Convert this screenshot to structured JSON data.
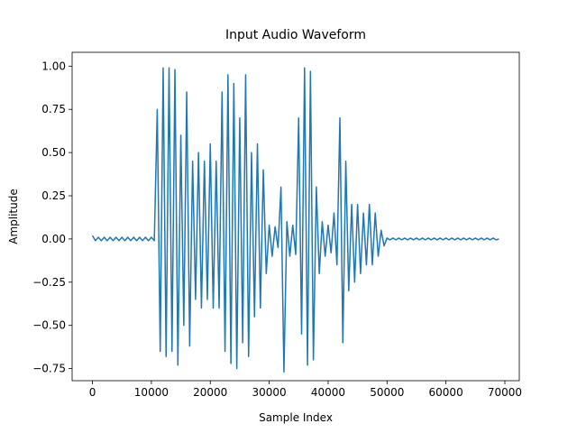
{
  "chart_data": {
    "type": "line",
    "title": "Input Audio Waveform",
    "x_label": "Sample Index",
    "y_label": "Amplitude",
    "color": "#1f77b4",
    "grid": false,
    "xlim": [
      -3450,
      72450
    ],
    "ylim": [
      -0.82,
      1.08
    ],
    "xticks": [
      0,
      10000,
      20000,
      30000,
      40000,
      50000,
      60000,
      70000
    ],
    "yticks": [
      {
        "value": -0.75,
        "label": "−0.75"
      },
      {
        "value": -0.5,
        "label": "−0.50"
      },
      {
        "value": -0.25,
        "label": "−0.25"
      },
      {
        "value": 0,
        "label": "0.00"
      },
      {
        "value": 0.25,
        "label": "0.25"
      },
      {
        "value": 0.5,
        "label": "0.50"
      },
      {
        "value": 0.75,
        "label": "0.75"
      },
      {
        "value": 1,
        "label": "1.00"
      }
    ],
    "x": [
      0,
      500,
      1000,
      1500,
      2000,
      2500,
      3000,
      3500,
      4000,
      4500,
      5000,
      5500,
      6000,
      6500,
      7000,
      7500,
      8000,
      8500,
      9000,
      9500,
      10000,
      10500,
      11000,
      11500,
      12000,
      12500,
      13000,
      13500,
      14000,
      14500,
      15000,
      15500,
      16000,
      16500,
      17000,
      17500,
      18000,
      18500,
      19000,
      19500,
      20000,
      20500,
      21000,
      21500,
      22000,
      22500,
      23000,
      23500,
      24000,
      24500,
      25000,
      25500,
      26000,
      26500,
      27000,
      27500,
      28000,
      28500,
      29000,
      29500,
      30000,
      30500,
      31000,
      31500,
      32000,
      32500,
      33000,
      33500,
      34000,
      34500,
      35000,
      35500,
      36000,
      36500,
      37000,
      37500,
      38000,
      38500,
      39000,
      39500,
      40000,
      40500,
      41000,
      41500,
      42000,
      42500,
      43000,
      43500,
      44000,
      44500,
      45000,
      45500,
      46000,
      46500,
      47000,
      47500,
      48000,
      48500,
      49000,
      49500,
      50000,
      50500,
      51000,
      51500,
      52000,
      52500,
      53000,
      53500,
      54000,
      54500,
      55000,
      55500,
      56000,
      56500,
      57000,
      57500,
      58000,
      58500,
      59000,
      59500,
      60000,
      60500,
      61000,
      61500,
      62000,
      62500,
      63000,
      63500,
      64000,
      64500,
      65000,
      65500,
      66000,
      66500,
      67000,
      67500,
      68000,
      68500,
      69000
    ],
    "values": [
      0.02,
      -0.01,
      0.01,
      -0.01,
      0.01,
      -0.01,
      0.01,
      -0.01,
      0.01,
      -0.01,
      0.01,
      -0.01,
      0.01,
      -0.01,
      0.01,
      -0.01,
      0.01,
      -0.01,
      0.01,
      -0.01,
      0.01,
      -0.01,
      0.75,
      -0.65,
      0.99,
      -0.68,
      0.99,
      -0.65,
      0.98,
      -0.73,
      0.6,
      -0.5,
      0.85,
      -0.62,
      0.45,
      -0.35,
      0.5,
      -0.4,
      0.45,
      -0.35,
      0.55,
      -0.4,
      0.45,
      -0.4,
      0.85,
      -0.65,
      0.95,
      -0.72,
      0.9,
      -0.75,
      0.7,
      -0.6,
      0.95,
      -0.68,
      0.5,
      -0.45,
      0.55,
      -0.4,
      0.4,
      -0.2,
      0.08,
      -0.1,
      0.07,
      -0.05,
      0.3,
      -0.77,
      0.1,
      -0.1,
      0.08,
      -0.09,
      0.7,
      -0.55,
      0.99,
      -0.73,
      0.97,
      -0.7,
      0.3,
      -0.2,
      0.1,
      -0.1,
      0.08,
      -0.08,
      0.15,
      -0.15,
      0.7,
      -0.6,
      0.45,
      -0.3,
      0.2,
      -0.25,
      0.2,
      -0.2,
      0.15,
      -0.15,
      0.2,
      -0.15,
      0.15,
      -0.1,
      0.05,
      -0.04,
      0.005,
      -0.005,
      0.005,
      -0.005,
      0.005,
      -0.005,
      0.005,
      -0.005,
      0.005,
      -0.005,
      0.005,
      -0.005,
      0.005,
      -0.005,
      0.005,
      -0.005,
      0.005,
      -0.005,
      0.005,
      -0.005,
      0.005,
      -0.005,
      0.005,
      -0.005,
      0.005,
      -0.005,
      0.005,
      -0.005,
      0.005,
      -0.005,
      0.005,
      -0.005,
      0.005,
      -0.005,
      0.005,
      -0.005,
      0.005,
      -0.005,
      0
    ]
  }
}
